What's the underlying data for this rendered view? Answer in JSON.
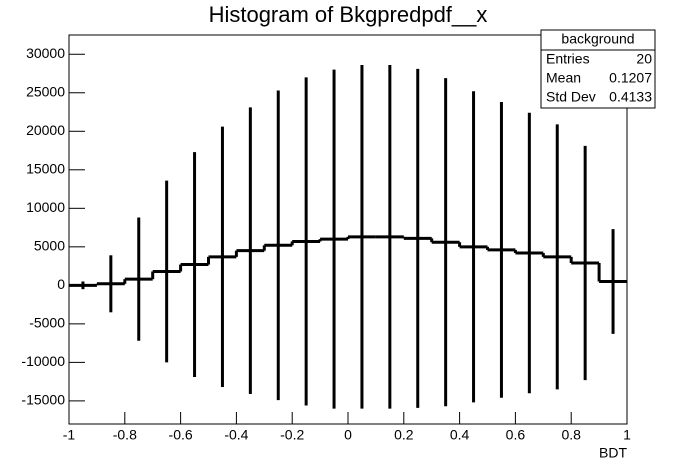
{
  "chart_data": {
    "type": "histogram",
    "title": "Histogram of Bkgpredpdf__x",
    "x_label": "BDT",
    "bins": [
      -1,
      -0.9,
      -0.8,
      -0.7,
      -0.6,
      -0.5,
      -0.4,
      -0.3,
      -0.2,
      -0.1,
      0,
      0.1,
      0.2,
      0.3,
      0.4,
      0.5,
      0.6,
      0.7,
      0.8,
      0.9,
      1
    ],
    "counts": [
      0,
      200,
      800,
      1800,
      2700,
      3700,
      4500,
      5200,
      5700,
      6000,
      6300,
      6300,
      6100,
      5600,
      5000,
      4600,
      4200,
      3700,
      2900,
      500
    ],
    "errors": [
      500,
      3700,
      8000,
      11800,
      14600,
      16900,
      18600,
      20100,
      21300,
      22000,
      22300,
      22300,
      22000,
      21300,
      20200,
      19200,
      18200,
      17200,
      15200,
      6800
    ],
    "color": "#000000",
    "xlim": [
      -1,
      1
    ],
    "xticks": [
      -1,
      -0.8,
      -0.6,
      -0.4,
      -0.2,
      0,
      0.2,
      0.4,
      0.6,
      0.8,
      1
    ],
    "ylim": [
      -18000,
      32500
    ],
    "yticks": [
      -15000,
      -10000,
      -5000,
      0,
      5000,
      10000,
      15000,
      20000,
      25000,
      30000
    ],
    "stats": {
      "title": "background",
      "rows": [
        [
          "Entries",
          20
        ],
        [
          "Mean",
          0.1207
        ],
        [
          "Std Dev",
          0.4133
        ]
      ]
    }
  }
}
